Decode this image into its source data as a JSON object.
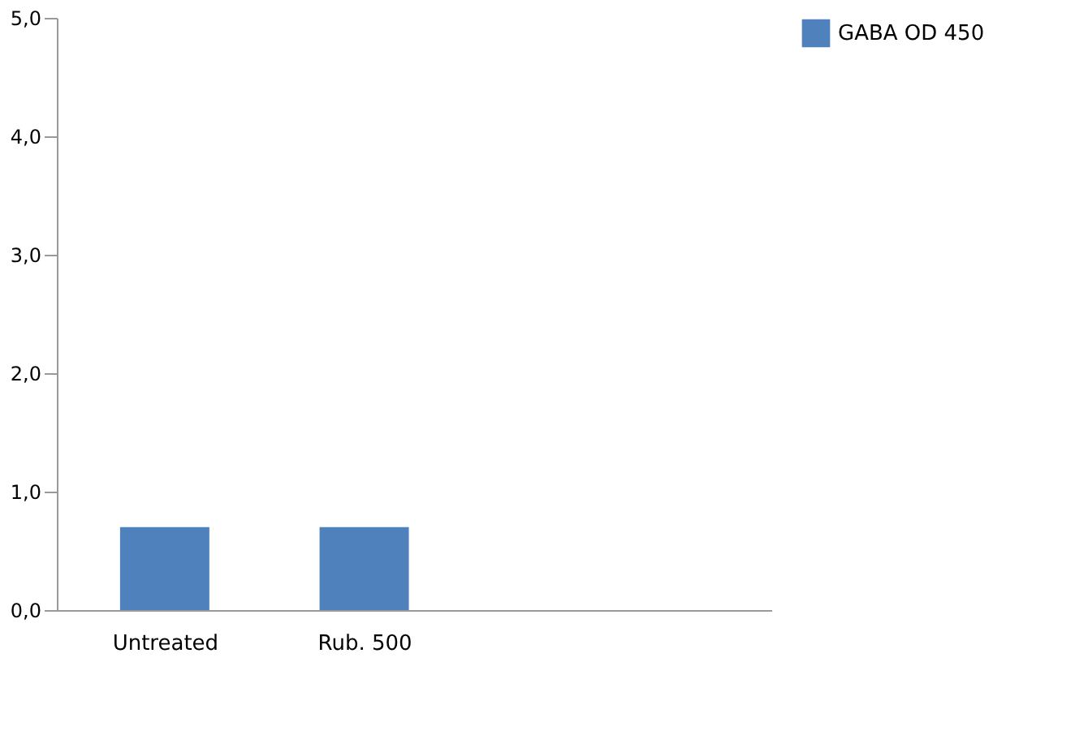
{
  "chart_data": {
    "type": "bar",
    "categories": [
      "Untreated",
      "Rub. 500"
    ],
    "series": [
      {
        "name": "GABA  OD 450",
        "color": "#4f81bd",
        "values": [
          0.7,
          0.7
        ]
      }
    ],
    "ylim": [
      0,
      5
    ],
    "yticks": [
      {
        "value": 0,
        "label": "0,0"
      },
      {
        "value": 1,
        "label": "1,0"
      },
      {
        "value": 2,
        "label": "2,0"
      },
      {
        "value": 3,
        "label": "3,0"
      },
      {
        "value": 4,
        "label": "4,0"
      },
      {
        "value": 5,
        "label": "5,0"
      }
    ],
    "grid": false,
    "legend": "right"
  }
}
